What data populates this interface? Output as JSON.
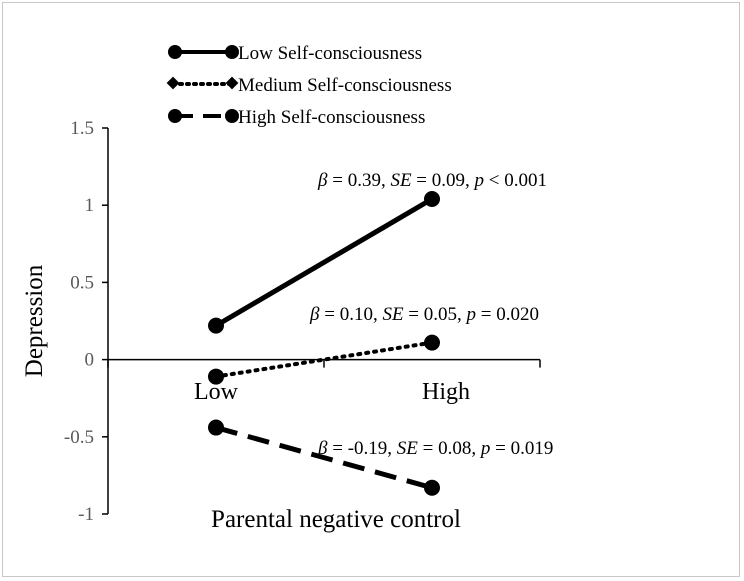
{
  "chart_data": {
    "type": "line",
    "title": "",
    "xlabel": "Parental negative control",
    "ylabel": "Depression",
    "categories": [
      "Low",
      "High"
    ],
    "ylim": [
      -1,
      1.5
    ],
    "yticks": [
      "1.5",
      "1",
      "0.5",
      "0",
      "-0.5",
      "-1"
    ],
    "ytick_values": [
      1.5,
      1,
      0.5,
      0,
      -0.5,
      -1
    ],
    "legend_position": "top-left",
    "series": [
      {
        "name": "Low Self-consciousness",
        "style": "solid",
        "values": [
          0.22,
          1.04
        ],
        "annotation": {
          "beta": "0.39",
          "se": "0.09",
          "p_op": "<",
          "p": "0.001"
        }
      },
      {
        "name": "Medium Self-consciousness",
        "style": "dotted",
        "values": [
          -0.11,
          0.11
        ],
        "annotation": {
          "beta": "0.10",
          "se": "0.05",
          "p_op": "=",
          "p": "0.020"
        }
      },
      {
        "name": "High Self-consciousness",
        "style": "dashed",
        "values": [
          -0.44,
          -0.83
        ],
        "annotation": {
          "beta": "-0.19",
          "se": "0.08",
          "p_op": "=",
          "p": "0.019"
        }
      }
    ],
    "colors": {
      "line": "#000000",
      "axis": "#000000",
      "tick_text": "#595959"
    }
  }
}
